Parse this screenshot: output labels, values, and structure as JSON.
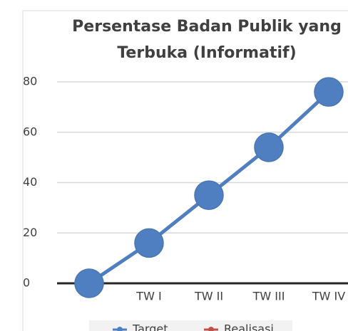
{
  "chart_data": {
    "type": "line",
    "title": [
      "Persentase Badan Publik yang",
      "Terbuka (Informatif)"
    ],
    "categories": [
      null,
      "TW I",
      "TW II",
      "TW III",
      "TW IV"
    ],
    "series": [
      {
        "name": "Target",
        "color": "#4f7fc1",
        "values": [
          0,
          16,
          35,
          54,
          76
        ]
      },
      {
        "name": "Realisasi",
        "color": "#c0504d",
        "values": [
          null,
          null,
          null,
          null,
          null
        ]
      }
    ],
    "ylim": [
      0,
      80
    ],
    "yticks": [
      0,
      20,
      40,
      60,
      80
    ],
    "grid": true,
    "legend": "bottom"
  }
}
